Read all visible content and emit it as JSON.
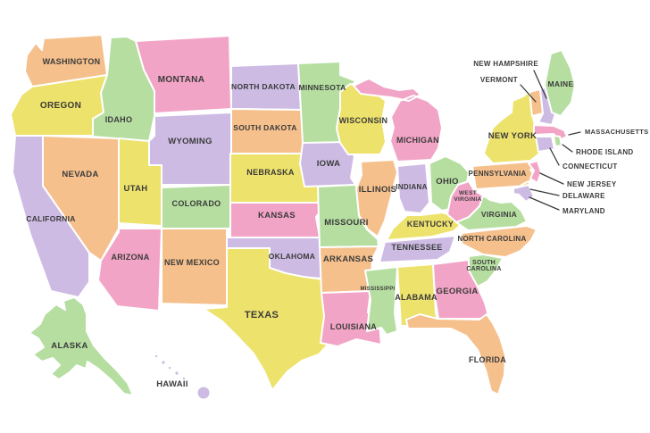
{
  "palette": {
    "pink": "#F2A4C6",
    "orange": "#F5C08C",
    "yellow": "#EDE26B",
    "green": "#B5DEA0",
    "purple": "#CDBBE4",
    "label_text": "#3B3B3B",
    "state_border": "#FFFFFF",
    "background": "#FFFFFF"
  },
  "callouts_with_pointer_lines": [
    "NEW HAMPSHIRE",
    "VERMONT",
    "MASSACHUSETTS",
    "RHODE ISLAND",
    "CONNECTICUT",
    "NEW JERSEY",
    "DELAWARE",
    "MARYLAND"
  ],
  "states": [
    {
      "id": "wa",
      "name": "WASHINGTON",
      "color": "orange"
    },
    {
      "id": "or",
      "name": "OREGON",
      "color": "yellow"
    },
    {
      "id": "ca",
      "name": "CALIFORNIA",
      "color": "purple"
    },
    {
      "id": "nv",
      "name": "NEVADA",
      "color": "orange"
    },
    {
      "id": "id",
      "name": "IDAHO",
      "color": "green"
    },
    {
      "id": "mt",
      "name": "MONTANA",
      "color": "pink"
    },
    {
      "id": "wy",
      "name": "WYOMING",
      "color": "purple"
    },
    {
      "id": "ut",
      "name": "UTAH",
      "color": "yellow"
    },
    {
      "id": "co",
      "name": "COLORADO",
      "color": "green"
    },
    {
      "id": "az",
      "name": "ARIZONA",
      "color": "pink"
    },
    {
      "id": "nm",
      "name": "NEW MEXICO",
      "color": "orange"
    },
    {
      "id": "nd",
      "name": "NORTH DAKOTA",
      "color": "purple"
    },
    {
      "id": "sd",
      "name": "SOUTH DAKOTA",
      "color": "orange"
    },
    {
      "id": "ne",
      "name": "NEBRASKA",
      "color": "yellow"
    },
    {
      "id": "ks",
      "name": "KANSAS",
      "color": "pink"
    },
    {
      "id": "ok",
      "name": "OKLAHOMA",
      "color": "purple"
    },
    {
      "id": "tx",
      "name": "TEXAS",
      "color": "yellow"
    },
    {
      "id": "mn",
      "name": "MINNESOTA",
      "color": "green"
    },
    {
      "id": "ia",
      "name": "IOWA",
      "color": "purple"
    },
    {
      "id": "mo",
      "name": "MISSOURI",
      "color": "green"
    },
    {
      "id": "ar",
      "name": "ARKANSAS",
      "color": "orange"
    },
    {
      "id": "la",
      "name": "LOUISIANA",
      "color": "pink"
    },
    {
      "id": "wi",
      "name": "WISCONSIN",
      "color": "yellow"
    },
    {
      "id": "il",
      "name": "ILLINOIS",
      "color": "orange"
    },
    {
      "id": "mi",
      "name": "MICHIGAN",
      "color": "pink"
    },
    {
      "id": "in",
      "name": "INDIANA",
      "color": "purple"
    },
    {
      "id": "oh",
      "name": "OHIO",
      "color": "green"
    },
    {
      "id": "ky",
      "name": "KENTUCKY",
      "color": "yellow"
    },
    {
      "id": "tn",
      "name": "TENNESSEE",
      "color": "purple"
    },
    {
      "id": "ms",
      "name": "MISSISSIPPI",
      "color": "green"
    },
    {
      "id": "al",
      "name": "ALABAMA",
      "color": "yellow"
    },
    {
      "id": "ga",
      "name": "GEORGIA",
      "color": "pink"
    },
    {
      "id": "fl",
      "name": "FLORIDA",
      "color": "orange"
    },
    {
      "id": "sc",
      "name": "SOUTH CAROLINA",
      "color": "green"
    },
    {
      "id": "nc",
      "name": "NORTH CAROLINA",
      "color": "orange"
    },
    {
      "id": "va",
      "name": "VIRGINIA",
      "color": "green"
    },
    {
      "id": "wv",
      "name": "WEST VIRGINIA",
      "color": "pink"
    },
    {
      "id": "pa",
      "name": "PENNSYLVANIA",
      "color": "orange"
    },
    {
      "id": "ny",
      "name": "NEW YORK",
      "color": "yellow"
    },
    {
      "id": "nj",
      "name": "NEW JERSEY",
      "color": "pink"
    },
    {
      "id": "de",
      "name": "DELAWARE",
      "color": "yellow"
    },
    {
      "id": "md",
      "name": "MARYLAND",
      "color": "purple"
    },
    {
      "id": "vt",
      "name": "VERMONT",
      "color": "orange"
    },
    {
      "id": "nh",
      "name": "NEW HAMPSHIRE",
      "color": "purple"
    },
    {
      "id": "me",
      "name": "MAINE",
      "color": "green"
    },
    {
      "id": "ma",
      "name": "MASSACHUSETTS",
      "color": "pink"
    },
    {
      "id": "ri",
      "name": "RHODE ISLAND",
      "color": "green"
    },
    {
      "id": "ct",
      "name": "CONNECTICUT",
      "color": "purple"
    },
    {
      "id": "ak",
      "name": "ALASKA",
      "color": "green"
    },
    {
      "id": "hi",
      "name": "HAWAII",
      "color": "purple"
    }
  ]
}
